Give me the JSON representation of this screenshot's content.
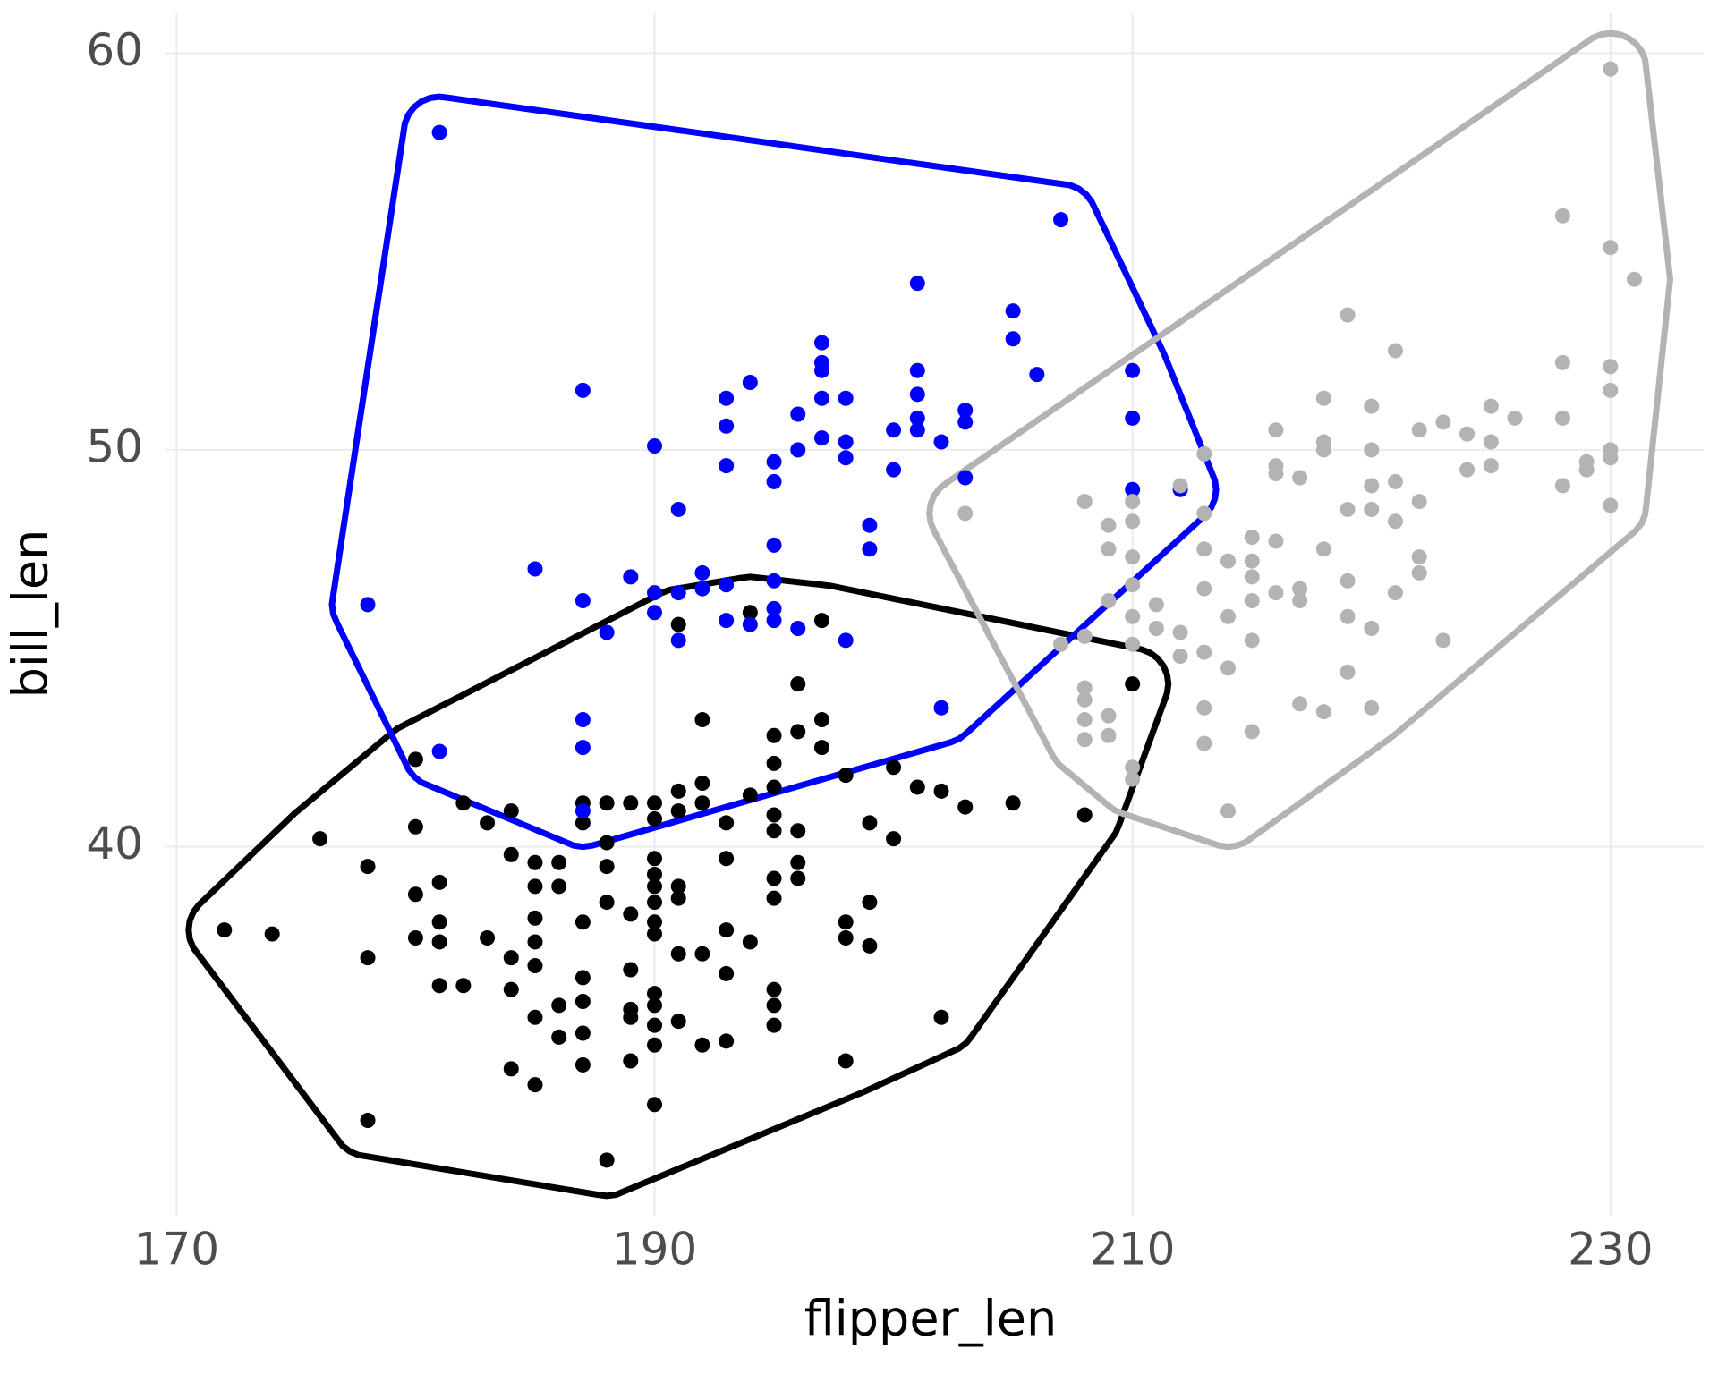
{
  "chart_data": {
    "type": "scatter",
    "x_label": "flipper_len",
    "y_label": "bill_len",
    "xlim": [
      169.5,
      233.9
    ],
    "ylim": [
      30.7,
      61.0
    ],
    "xticks": [
      170,
      190,
      210,
      230
    ],
    "yticks": [
      40,
      50,
      60
    ],
    "grid": true,
    "series": [
      {
        "color": "#000000",
        "x": [
          172,
          174,
          176,
          178,
          178,
          178,
          180,
          180,
          180,
          180,
          181,
          181,
          181,
          181,
          182,
          182,
          183,
          183,
          184,
          184,
          184,
          184,
          184,
          185,
          185,
          185,
          185,
          185,
          185,
          185,
          186,
          186,
          186,
          186,
          187,
          187,
          187,
          187,
          187,
          187,
          187,
          188,
          188,
          188,
          188,
          188,
          189,
          189,
          189,
          189,
          189,
          189,
          190,
          190,
          190,
          190,
          190,
          190,
          190,
          190,
          190,
          190,
          190,
          190,
          190,
          191,
          191,
          191,
          191,
          191,
          191,
          191,
          192,
          192,
          192,
          192,
          192,
          193,
          193,
          193,
          193,
          193,
          194,
          194,
          194,
          195,
          195,
          195,
          195,
          195,
          195,
          195,
          195,
          195,
          195,
          196,
          196,
          196,
          196,
          196,
          197,
          197,
          197,
          198,
          198,
          198,
          198,
          199,
          199,
          199,
          200,
          200,
          201,
          202,
          202,
          203,
          205,
          208,
          210
        ],
        "y": [
          37.9,
          37.8,
          40.2,
          39.5,
          37.2,
          33.1,
          42.2,
          40.5,
          38.8,
          37.7,
          39.1,
          38.1,
          37.6,
          36.5,
          36.5,
          41.1,
          40.6,
          37.7,
          40.9,
          39.8,
          37.2,
          36.4,
          34.4,
          39.6,
          39.0,
          38.2,
          37.6,
          37.0,
          35.7,
          34.0,
          39.6,
          39.0,
          36.0,
          35.2,
          41.1,
          40.6,
          38.1,
          36.7,
          36.1,
          35.3,
          34.5,
          41.1,
          40.1,
          39.5,
          38.6,
          32.1,
          41.1,
          38.3,
          36.9,
          35.9,
          35.7,
          34.6,
          41.1,
          40.7,
          39.7,
          39.3,
          39.0,
          38.6,
          38.1,
          37.8,
          36.3,
          36.0,
          35.5,
          35.0,
          33.5,
          45.6,
          41.4,
          40.9,
          39.0,
          38.7,
          37.3,
          35.6,
          43.2,
          41.6,
          41.1,
          37.3,
          35.0,
          40.6,
          39.7,
          37.9,
          36.8,
          35.1,
          45.9,
          41.3,
          37.6,
          42.8,
          42.1,
          41.5,
          40.8,
          40.4,
          39.2,
          38.7,
          36.4,
          36.0,
          35.5,
          44.1,
          42.9,
          40.4,
          39.6,
          39.2,
          45.7,
          43.2,
          42.5,
          41.8,
          38.1,
          37.7,
          34.6,
          40.6,
          38.6,
          37.5,
          42.0,
          40.2,
          41.5,
          41.4,
          35.7,
          41.0,
          41.1,
          40.8,
          44.1
        ]
      },
      {
        "color": "#0000ff",
        "x": [
          178,
          181,
          181,
          185,
          187,
          187,
          187,
          187,
          187,
          188,
          189,
          190,
          190,
          190,
          191,
          191,
          191,
          192,
          192,
          193,
          193,
          193,
          193,
          193,
          194,
          194,
          195,
          195,
          195,
          195,
          195,
          195,
          196,
          196,
          196,
          197,
          197,
          197,
          197,
          197,
          198,
          198,
          198,
          198,
          199,
          199,
          200,
          200,
          201,
          201,
          201,
          201,
          201,
          202,
          202,
          203,
          203,
          203,
          205,
          205,
          206,
          207,
          210,
          210,
          210,
          212
        ],
        "y": [
          46.1,
          58.0,
          42.4,
          47.0,
          51.5,
          46.2,
          43.2,
          42.5,
          40.9,
          45.4,
          46.8,
          50.1,
          46.4,
          45.9,
          48.5,
          46.4,
          45.2,
          46.9,
          46.5,
          51.3,
          50.6,
          49.6,
          46.6,
          45.7,
          51.7,
          45.6,
          49.7,
          49.2,
          47.6,
          46.7,
          46.0,
          45.7,
          50.9,
          50.0,
          45.5,
          52.7,
          52.2,
          52.0,
          51.3,
          50.3,
          51.3,
          50.2,
          49.8,
          45.2,
          48.1,
          47.5,
          50.5,
          49.5,
          54.2,
          52.0,
          51.4,
          50.8,
          50.5,
          50.2,
          43.5,
          51.0,
          50.7,
          49.3,
          53.5,
          52.8,
          51.9,
          55.8,
          52.0,
          50.8,
          49.0,
          49.0
        ]
      },
      {
        "color": "#b3b3b3",
        "x": [
          203,
          207,
          208,
          208,
          208,
          208,
          208,
          208,
          209,
          209,
          209,
          209,
          209,
          210,
          210,
          210,
          210,
          210,
          210,
          210,
          210,
          211,
          211,
          212,
          212,
          212,
          213,
          213,
          213,
          213,
          213,
          213,
          213,
          214,
          214,
          214,
          214,
          215,
          215,
          215,
          215,
          215,
          215,
          216,
          216,
          216,
          216,
          216,
          217,
          217,
          217,
          217,
          218,
          218,
          218,
          218,
          218,
          219,
          219,
          219,
          219,
          219,
          220,
          220,
          220,
          220,
          220,
          220,
          221,
          221,
          221,
          221,
          222,
          222,
          222,
          222,
          223,
          223,
          224,
          224,
          225,
          225,
          225,
          226,
          228,
          228,
          228,
          228,
          229,
          229,
          230,
          230,
          230,
          230,
          230,
          230,
          230,
          231
        ],
        "y": [
          48.4,
          45.1,
          48.7,
          45.3,
          44.0,
          43.7,
          43.2,
          42.7,
          48.1,
          47.5,
          46.2,
          43.3,
          42.8,
          48.7,
          48.2,
          47.3,
          46.6,
          45.8,
          45.1,
          42.0,
          41.7,
          46.1,
          45.5,
          49.1,
          45.4,
          44.8,
          49.9,
          48.4,
          47.5,
          46.5,
          44.9,
          43.5,
          42.6,
          47.2,
          45.8,
          44.5,
          40.9,
          47.8,
          47.2,
          46.8,
          46.2,
          45.2,
          42.9,
          50.5,
          49.6,
          49.4,
          47.7,
          46.4,
          49.3,
          46.5,
          46.2,
          43.6,
          51.3,
          50.2,
          50.0,
          47.5,
          43.4,
          53.4,
          48.5,
          46.7,
          45.8,
          44.4,
          51.1,
          50.0,
          49.1,
          48.5,
          45.5,
          43.5,
          52.5,
          49.2,
          48.2,
          46.4,
          50.5,
          48.7,
          47.3,
          46.9,
          50.7,
          45.2,
          50.4,
          49.5,
          51.1,
          50.2,
          49.6,
          50.8,
          55.9,
          52.2,
          50.8,
          49.1,
          49.7,
          49.5,
          59.6,
          55.1,
          52.1,
          51.5,
          50.0,
          49.8,
          48.6,
          54.3
        ]
      }
    ]
  }
}
